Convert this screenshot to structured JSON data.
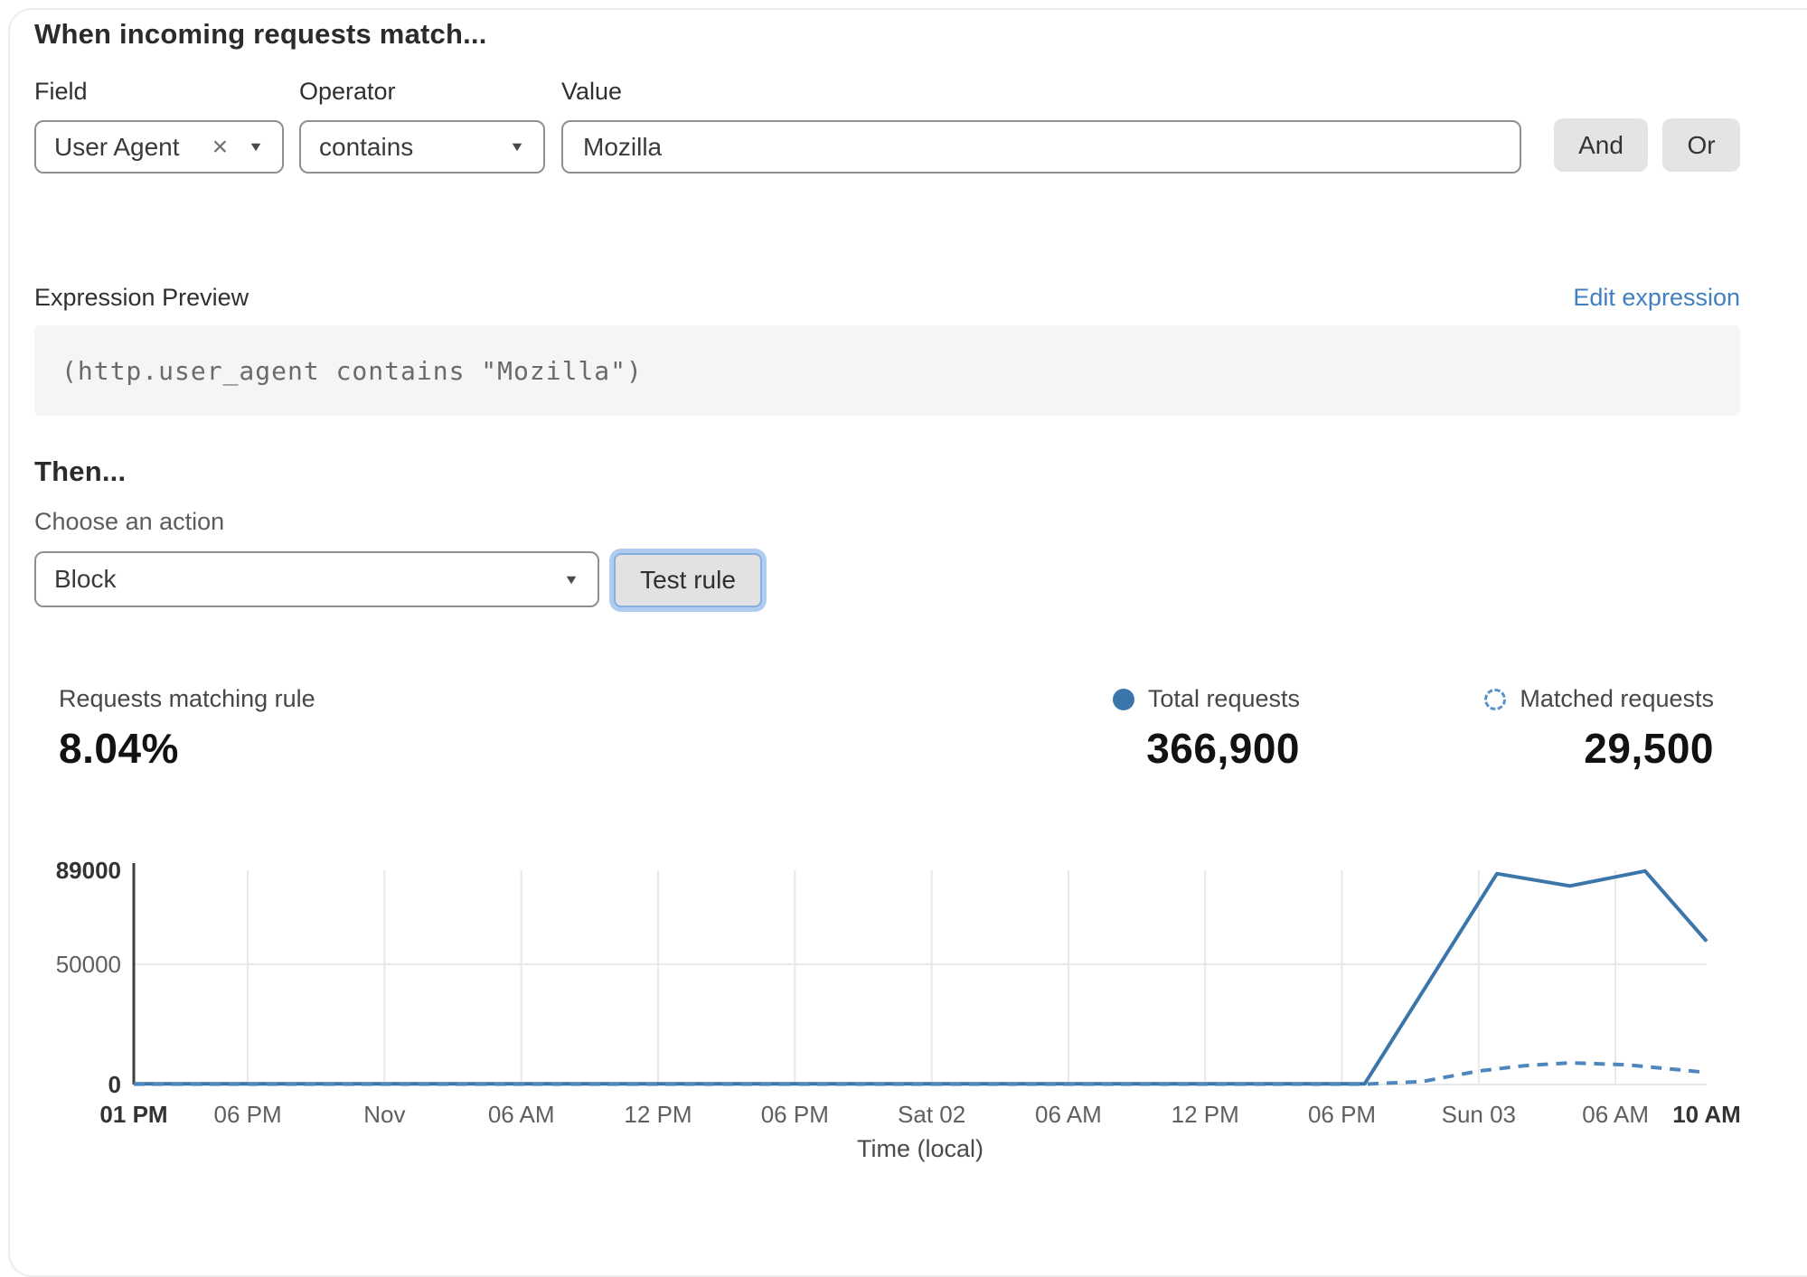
{
  "icons": {
    "chevron_down": "▼",
    "clear": "×"
  },
  "rule_builder": {
    "heading": "When incoming requests match...",
    "field": {
      "label": "Field",
      "value": "User Agent"
    },
    "operator": {
      "label": "Operator",
      "value": "contains"
    },
    "value": {
      "label": "Value",
      "value": "Mozilla"
    },
    "and_button": "And",
    "or_button": "Or"
  },
  "expression_preview": {
    "label": "Expression Preview",
    "edit_link": "Edit expression",
    "expression": "(http.user_agent contains \"Mozilla\")"
  },
  "action_section": {
    "heading": "Then...",
    "choose_label": "Choose an action",
    "action_value": "Block",
    "test_button": "Test rule"
  },
  "stats": {
    "matching": {
      "label": "Requests matching rule",
      "value": "8.04%"
    },
    "total": {
      "label": "Total requests",
      "value": "366,900"
    },
    "matched": {
      "label": "Matched requests",
      "value": "29,500"
    }
  },
  "chart_data": {
    "type": "line",
    "title": "",
    "xlabel": "Time (local)",
    "ylabel": "",
    "ylim": [
      0,
      89000
    ],
    "x_hours_total": 69,
    "grid_on": true,
    "grid_color": "#e8e8e8",
    "axis_color": "#3f3f3f",
    "legend_position": "above-right",
    "y_ticks": [
      {
        "label": "89000",
        "value": 89000,
        "bold": true,
        "grid": false
      },
      {
        "label": "50000",
        "value": 50000,
        "bold": false,
        "grid": true
      },
      {
        "label": "0",
        "value": 0,
        "bold": true,
        "grid": true
      }
    ],
    "x_ticks": [
      {
        "label": "01 PM",
        "hour": 0,
        "bold": true,
        "grid": false
      },
      {
        "label": "06 PM",
        "hour": 5,
        "bold": false,
        "grid": true
      },
      {
        "label": "Nov",
        "hour": 11,
        "bold": false,
        "grid": true
      },
      {
        "label": "06 AM",
        "hour": 17,
        "bold": false,
        "grid": true
      },
      {
        "label": "12 PM",
        "hour": 23,
        "bold": false,
        "grid": true
      },
      {
        "label": "06 PM",
        "hour": 29,
        "bold": false,
        "grid": true
      },
      {
        "label": "Sat 02",
        "hour": 35,
        "bold": false,
        "grid": true
      },
      {
        "label": "06 AM",
        "hour": 41,
        "bold": false,
        "grid": true
      },
      {
        "label": "12 PM",
        "hour": 47,
        "bold": false,
        "grid": true
      },
      {
        "label": "06 PM",
        "hour": 53,
        "bold": false,
        "grid": true
      },
      {
        "label": "Sun 03",
        "hour": 59,
        "bold": false,
        "grid": true
      },
      {
        "label": "06 AM",
        "hour": 65,
        "bold": false,
        "grid": true
      },
      {
        "label": "10 AM",
        "hour": 69,
        "bold": true,
        "grid": false
      }
    ],
    "series": [
      {
        "name": "Total requests",
        "style": "solid",
        "color": "#3b76ab",
        "points": [
          [
            0,
            300
          ],
          [
            54,
            300
          ],
          [
            59.8,
            87600
          ],
          [
            63,
            82500
          ],
          [
            66.3,
            88700
          ],
          [
            69,
            59500
          ]
        ]
      },
      {
        "name": "Matched requests",
        "style": "dashed",
        "color": "#4e87bd",
        "points": [
          [
            0,
            150
          ],
          [
            54,
            150
          ],
          [
            56.5,
            1200
          ],
          [
            59,
            5600
          ],
          [
            61,
            7800
          ],
          [
            63,
            9000
          ],
          [
            65.5,
            8200
          ],
          [
            69,
            5000
          ]
        ]
      }
    ]
  }
}
